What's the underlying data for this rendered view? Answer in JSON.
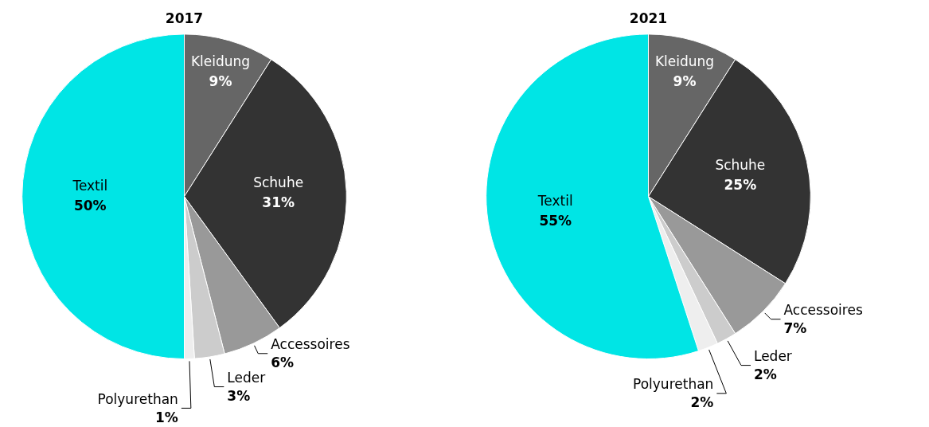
{
  "chart_data": [
    {
      "type": "pie",
      "title": "2017",
      "categories": [
        "Kleidung",
        "Schuhe",
        "Accessoires",
        "Leder",
        "Polyurethan",
        "Textil"
      ],
      "values": [
        9,
        31,
        6,
        3,
        1,
        50
      ],
      "value_labels": [
        "9%",
        "31%",
        "6%",
        "3%",
        "1%",
        "50%"
      ],
      "colors": [
        "#666666",
        "#333333",
        "#999999",
        "#cccccc",
        "#eeeeee",
        "#00e5e5"
      ],
      "legend": false
    },
    {
      "type": "pie",
      "title": "2021",
      "categories": [
        "Kleidung",
        "Schuhe",
        "Accessoires",
        "Leder",
        "Polyurethan",
        "Textil"
      ],
      "values": [
        9,
        25,
        7,
        2,
        2,
        55
      ],
      "value_labels": [
        "9%",
        "25%",
        "7%",
        "2%",
        "2%",
        "55%"
      ],
      "colors": [
        "#666666",
        "#333333",
        "#999999",
        "#cccccc",
        "#eeeeee",
        "#00e5e5"
      ],
      "legend": false
    }
  ]
}
